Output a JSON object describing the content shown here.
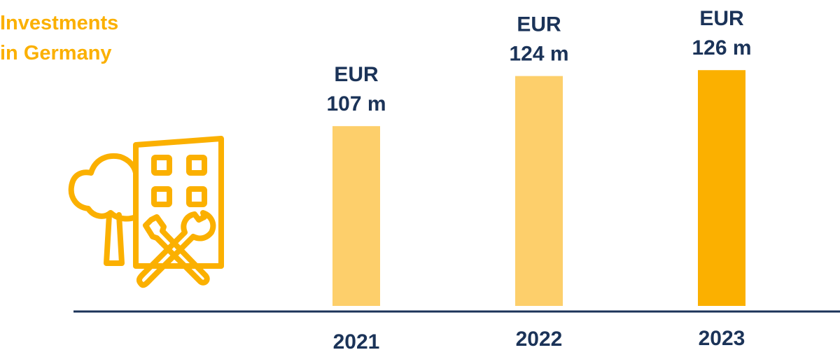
{
  "title_lines": [
    "Investments",
    "in Germany"
  ],
  "icon": "building-tree-tools-icon",
  "chart_data": {
    "type": "bar",
    "title": "Investments in Germany",
    "categories": [
      "2021",
      "2022",
      "2023"
    ],
    "values": [
      107,
      124,
      126
    ],
    "unit_prefix": "EUR",
    "data_labels": [
      [
        "EUR",
        "107 m"
      ],
      [
        "EUR",
        "124 m"
      ],
      [
        "EUR",
        "126 m"
      ]
    ],
    "xlabel": "",
    "ylabel": "",
    "grid": false,
    "colors": {
      "bar": "#FDCF6B",
      "highlight_bar": "#FBB000",
      "text": "#1B3358",
      "axis": "#1B3358",
      "title": "#FBB000"
    },
    "highlight_category": "2023"
  }
}
